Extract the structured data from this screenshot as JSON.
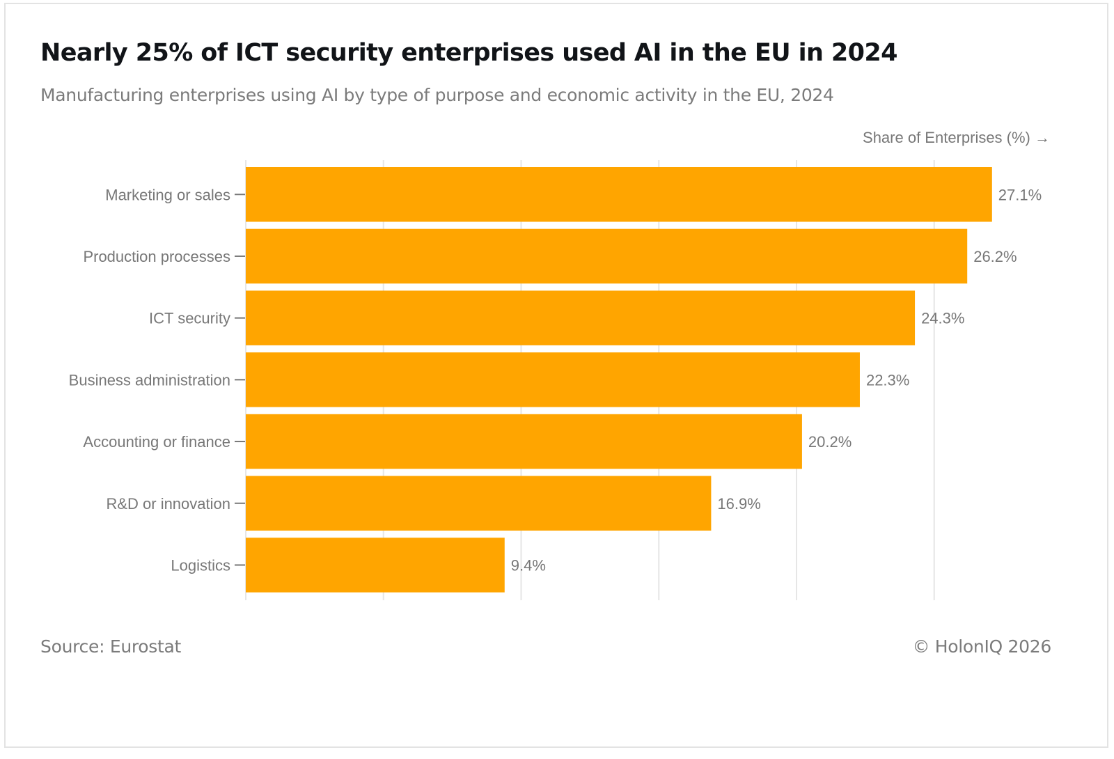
{
  "header": {
    "title": "Nearly 25% of ICT security enterprises used AI in the EU in 2024",
    "subtitle": "Manufacturing enterprises using AI by type of purpose and economic activity in the EU, 2024"
  },
  "footer": {
    "source": "Source: Eurostat",
    "copyright": "© HolonIQ 2026"
  },
  "chart_data": {
    "type": "bar",
    "orientation": "horizontal",
    "title": "Nearly 25% of ICT security enterprises used AI in the EU in 2024",
    "subtitle": "Manufacturing enterprises using AI by type of purpose and economic activity in the EU, 2024",
    "xlabel": "Share of Enterprises (%) →",
    "ylabel": "",
    "categories": [
      "Marketing or sales",
      "Production processes",
      "ICT security",
      "Business administration",
      "Accounting or finance",
      "R&D or innovation",
      "Logistics"
    ],
    "values": [
      27.1,
      26.2,
      24.3,
      22.3,
      20.2,
      16.9,
      9.4
    ],
    "value_labels": [
      "27.1%",
      "26.2%",
      "24.3%",
      "22.3%",
      "20.2%",
      "16.9%",
      "9.4%"
    ],
    "xlim": [
      0,
      30
    ],
    "x_gridlines": [
      0,
      5,
      10,
      15,
      20,
      25
    ],
    "x_tick_labels_shown": false,
    "grid": true,
    "legend": "none",
    "bar_color": "#FFA500",
    "grid_color": "#e6e6e6",
    "text_color": "#777777"
  }
}
